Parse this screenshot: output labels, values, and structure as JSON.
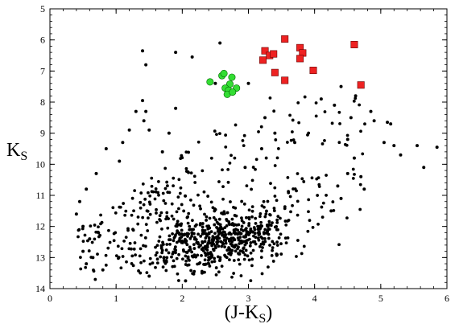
{
  "chart_data": {
    "type": "scatter",
    "title": "",
    "xlabel_main": "(J-K",
    "xlabel_sub": "S",
    "xlabel_close": ")",
    "ylabel_main": "K",
    "ylabel_sub": "S",
    "xlim": [
      0,
      6
    ],
    "ylim": [
      14,
      5
    ],
    "y_inverted": true,
    "x_ticks": [
      0,
      1,
      2,
      3,
      4,
      5,
      6
    ],
    "y_ticks": [
      5,
      6,
      7,
      8,
      9,
      10,
      11,
      12,
      13,
      14
    ],
    "grid": false,
    "colors": {
      "black": "#000000",
      "green": "#33dd33",
      "red": "#ee2222"
    },
    "series": [
      {
        "marker": "square",
        "color": "#ee2222",
        "points": [
          [
            3.25,
            6.35
          ],
          [
            3.22,
            6.65
          ],
          [
            3.32,
            6.5
          ],
          [
            3.38,
            6.45
          ],
          [
            3.55,
            5.97
          ],
          [
            3.78,
            6.25
          ],
          [
            3.82,
            6.42
          ],
          [
            3.78,
            6.6
          ],
          [
            3.4,
            7.05
          ],
          [
            3.55,
            7.3
          ],
          [
            3.98,
            6.98
          ],
          [
            4.6,
            6.15
          ],
          [
            4.7,
            7.45
          ]
        ]
      },
      {
        "marker": "circle",
        "color": "#33dd33",
        "points": [
          [
            2.42,
            7.35
          ],
          [
            2.6,
            7.15
          ],
          [
            2.63,
            7.08
          ],
          [
            2.75,
            7.2
          ],
          [
            2.72,
            7.42
          ],
          [
            2.65,
            7.55
          ],
          [
            2.7,
            7.62
          ],
          [
            2.82,
            7.55
          ],
          [
            2.68,
            7.75
          ],
          [
            2.76,
            7.68
          ]
        ]
      },
      {
        "marker": "dot",
        "color": "#000000",
        "points": [
          [
            1.4,
            6.35
          ],
          [
            1.45,
            6.8
          ],
          [
            2.15,
            6.55
          ],
          [
            2.57,
            6.1
          ],
          [
            1.9,
            6.4
          ],
          [
            2.5,
            7.4
          ],
          [
            3.0,
            7.4
          ],
          [
            4.4,
            7.5
          ],
          [
            4.62,
            7.8
          ],
          [
            4.1,
            7.9
          ],
          [
            4.3,
            8.1
          ],
          [
            4.85,
            8.3
          ],
          [
            4.9,
            8.6
          ],
          [
            5.1,
            8.65
          ],
          [
            5.15,
            8.7
          ],
          [
            5.05,
            9.3
          ],
          [
            5.3,
            9.7
          ],
          [
            5.55,
            9.4
          ],
          [
            5.85,
            9.45
          ],
          [
            5.65,
            10.1
          ],
          [
            5.2,
            9.4
          ],
          [
            4.55,
            8.5
          ],
          [
            4.5,
            9.2
          ],
          [
            4.6,
            9.8
          ],
          [
            4.7,
            10.4
          ],
          [
            4.75,
            10.8
          ],
          [
            4.5,
            10.3
          ],
          [
            4.35,
            10.7
          ],
          [
            4.4,
            11.1
          ],
          [
            4.25,
            11.5
          ],
          [
            1.4,
            7.95
          ],
          [
            1.45,
            8.3
          ],
          [
            1.42,
            8.6
          ],
          [
            1.5,
            8.9
          ],
          [
            1.3,
            8.3
          ],
          [
            1.7,
            9.6
          ],
          [
            1.2,
            8.9
          ],
          [
            1.1,
            9.3
          ],
          [
            1.05,
            9.9
          ],
          [
            0.85,
            9.5
          ],
          [
            0.7,
            10.3
          ],
          [
            0.55,
            10.8
          ],
          [
            0.45,
            11.2
          ],
          [
            0.4,
            11.6
          ],
          [
            0.5,
            12.0
          ],
          [
            0.6,
            12.4
          ],
          [
            0.5,
            12.8
          ],
          [
            0.55,
            13.2
          ],
          [
            0.65,
            13.0
          ],
          [
            0.8,
            13.4
          ],
          [
            1.5,
            13.6
          ],
          [
            2.05,
            13.75
          ],
          [
            2.3,
            13.5
          ],
          [
            1.8,
            9.0
          ],
          [
            1.9,
            8.2
          ],
          [
            3.25,
            8.5
          ],
          [
            3.4,
            9.0
          ],
          [
            3.2,
            9.5
          ],
          [
            2.95,
            10.1
          ],
          [
            3.7,
            9.3
          ]
        ]
      }
    ]
  }
}
